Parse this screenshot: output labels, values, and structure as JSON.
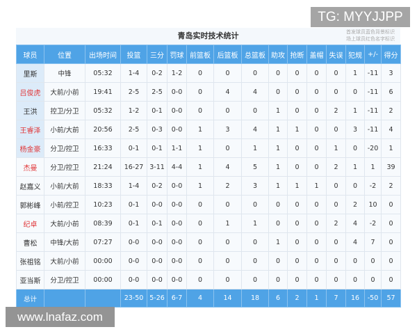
{
  "watermark_top": "TG: MYYJJPP",
  "watermark_bottom": "www.lnafaz.com",
  "title": "青岛实时技术统计",
  "legend": [
    "首发球员蓝色背景标识",
    "场上球员红色名字标识"
  ],
  "colors": {
    "header": "#4fa3e6",
    "starter_bg": "#dcebf9",
    "on_court_name": "#e0383a"
  },
  "headers": [
    "球员",
    "位置",
    "出场时间",
    "投篮",
    "三分",
    "罚球",
    "前篮板",
    "后篮板",
    "总篮板",
    "助攻",
    "抢断",
    "盖帽",
    "失误",
    "犯规",
    "+/-",
    "得分"
  ],
  "rows": [
    {
      "starter": true,
      "on_court": false,
      "cells": [
        "里斯",
        "中锋",
        "05:32",
        "1-4",
        "0-2",
        "1-2",
        "0",
        "0",
        "0",
        "0",
        "0",
        "0",
        "0",
        "1",
        "-11",
        "3"
      ]
    },
    {
      "starter": true,
      "on_court": true,
      "cells": [
        "吕俊虎",
        "大前/小前",
        "19:41",
        "2-5",
        "2-5",
        "0-0",
        "0",
        "4",
        "4",
        "0",
        "0",
        "0",
        "0",
        "0",
        "-11",
        "6"
      ]
    },
    {
      "starter": true,
      "on_court": false,
      "cells": [
        "王洪",
        "控卫/分卫",
        "05:32",
        "1-2",
        "0-1",
        "0-0",
        "0",
        "0",
        "0",
        "1",
        "0",
        "0",
        "2",
        "1",
        "-11",
        "2"
      ]
    },
    {
      "starter": true,
      "on_court": true,
      "cells": [
        "王睿泽",
        "小前/大前",
        "20:56",
        "2-5",
        "0-3",
        "0-0",
        "1",
        "3",
        "4",
        "1",
        "1",
        "0",
        "0",
        "3",
        "-11",
        "4"
      ]
    },
    {
      "starter": true,
      "on_court": true,
      "cells": [
        "杨金豪",
        "分卫/控卫",
        "16:33",
        "0-1",
        "0-1",
        "1-1",
        "1",
        "0",
        "1",
        "1",
        "0",
        "0",
        "1",
        "0",
        "-20",
        "1"
      ]
    },
    {
      "starter": false,
      "on_court": true,
      "cells": [
        "杰曼",
        "分卫/控卫",
        "21:24",
        "16-27",
        "3-11",
        "4-4",
        "1",
        "4",
        "5",
        "1",
        "0",
        "0",
        "2",
        "1",
        "1",
        "39"
      ]
    },
    {
      "starter": false,
      "on_court": false,
      "cells": [
        "赵嘉义",
        "小前/大前",
        "18:33",
        "1-4",
        "0-2",
        "0-0",
        "1",
        "2",
        "3",
        "1",
        "1",
        "1",
        "0",
        "0",
        "-2",
        "2"
      ]
    },
    {
      "starter": false,
      "on_court": false,
      "cells": [
        "郭彬峰",
        "小前/控卫",
        "10:23",
        "0-1",
        "0-0",
        "0-0",
        "0",
        "0",
        "0",
        "0",
        "0",
        "0",
        "0",
        "2",
        "10",
        "0"
      ]
    },
    {
      "starter": false,
      "on_court": true,
      "cells": [
        "纪卓",
        "大前/小前",
        "08:39",
        "0-1",
        "0-1",
        "0-0",
        "0",
        "1",
        "1",
        "0",
        "0",
        "0",
        "2",
        "4",
        "-2",
        "0"
      ]
    },
    {
      "starter": false,
      "on_court": false,
      "cells": [
        "曹松",
        "中锋/大前",
        "07:27",
        "0-0",
        "0-0",
        "0-0",
        "0",
        "0",
        "0",
        "1",
        "0",
        "0",
        "0",
        "4",
        "7",
        "0"
      ]
    },
    {
      "starter": false,
      "on_court": false,
      "cells": [
        "张祖铭",
        "大前/小前",
        "00:00",
        "0-0",
        "0-0",
        "0-0",
        "0",
        "0",
        "0",
        "0",
        "0",
        "0",
        "0",
        "0",
        "0",
        "0"
      ]
    },
    {
      "starter": false,
      "on_court": false,
      "cells": [
        "亚当斯",
        "分卫/控卫",
        "00:00",
        "0-0",
        "0-0",
        "0-0",
        "0",
        "0",
        "0",
        "0",
        "0",
        "0",
        "0",
        "0",
        "0",
        "0"
      ]
    }
  ],
  "total": [
    "总计",
    "",
    "",
    "23-50",
    "5-26",
    "6-7",
    "4",
    "14",
    "18",
    "6",
    "2",
    "1",
    "7",
    "16",
    "-50",
    "57"
  ]
}
